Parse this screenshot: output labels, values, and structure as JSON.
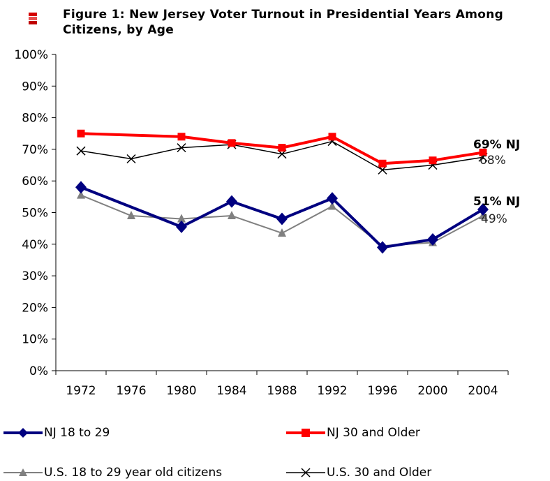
{
  "chart_data": {
    "type": "line",
    "title": "Figure 1: New Jersey Voter Turnout in Presidential Years Among Citizens, by Age",
    "x": [
      "1972",
      "1976",
      "1980",
      "1984",
      "1988",
      "1992",
      "1996",
      "2000",
      "2004"
    ],
    "ylim": [
      0,
      100
    ],
    "yticks": [
      "0%",
      "10%",
      "20%",
      "30%",
      "40%",
      "50%",
      "60%",
      "70%",
      "80%",
      "90%",
      "100%"
    ],
    "legend_position": "bottom",
    "series": [
      {
        "name": "NJ 18 to 29",
        "color": "#000080",
        "marker": "diamond",
        "values": [
          58,
          null,
          45.5,
          53.5,
          48,
          54.5,
          39,
          41.5,
          51
        ]
      },
      {
        "name": "NJ 30 and Older",
        "color": "#ff0000",
        "marker": "square",
        "values": [
          75,
          null,
          74,
          72,
          70.5,
          74,
          65.5,
          66.5,
          69
        ]
      },
      {
        "name": "U.S. 18 to 29 year old citizens",
        "color": "#808080",
        "marker": "triangle",
        "values": [
          55.5,
          49,
          48,
          49,
          43.5,
          52,
          39.5,
          40.5,
          49
        ]
      },
      {
        "name": "U.S. 30 and Older",
        "color": "#000000",
        "marker": "x",
        "values": [
          69.5,
          67,
          70.5,
          71.5,
          68.5,
          72.5,
          63.5,
          65,
          67.5
        ]
      }
    ],
    "annotations": [
      {
        "text": "69% NJ",
        "series": "NJ 30 and Older",
        "style": "bold"
      },
      {
        "text": "68%",
        "series": "U.S. 30 and Older",
        "style": "regular"
      },
      {
        "text": "51% NJ",
        "series": "NJ 18 to 29",
        "style": "bold"
      },
      {
        "text": "49%",
        "series": "U.S. 18 to 29 year old citizens",
        "style": "regular"
      }
    ]
  }
}
